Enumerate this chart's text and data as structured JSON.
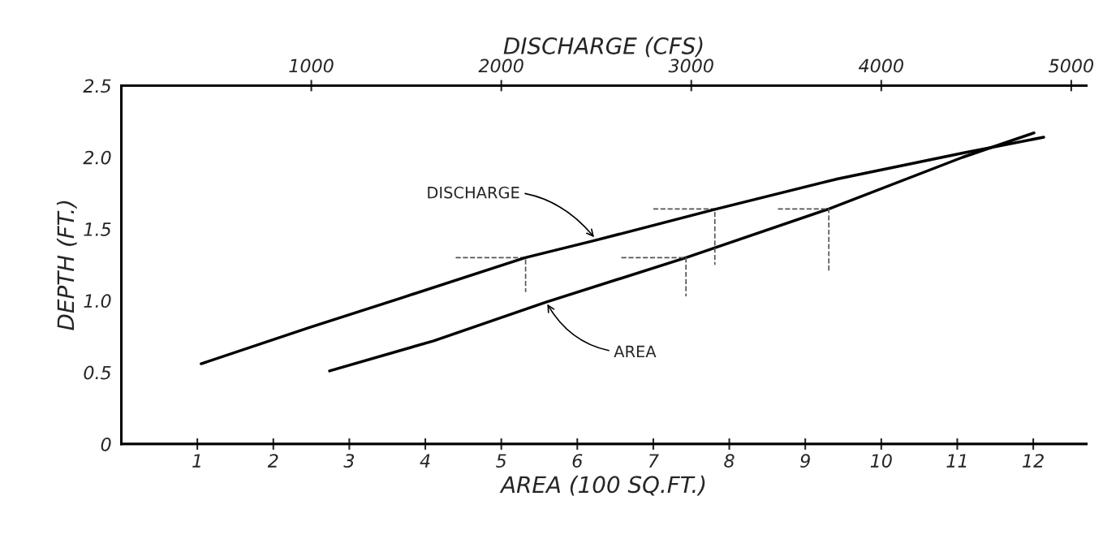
{
  "chart_data": {
    "type": "line",
    "xlabel": "AREA (100 SQ.FT.)",
    "ylabel": "DEPTH (FT.)",
    "x2label": "DISCHARGE (CFS)",
    "xlim": [
      0,
      12.7
    ],
    "xticks": [
      1,
      2,
      3,
      4,
      5,
      6,
      7,
      8,
      9,
      10,
      11,
      12
    ],
    "x2lim": [
      0,
      5080
    ],
    "x2ticks": [
      1000,
      2000,
      3000,
      4000,
      5000
    ],
    "ylim": [
      0,
      2.5
    ],
    "yticks": [
      0,
      {
        "value": 0.5,
        "label": "0.5"
      },
      {
        "value": 1,
        "label": "1.0"
      },
      {
        "value": 1.5,
        "label": "1.5"
      },
      {
        "value": 2,
        "label": "2.0"
      },
      {
        "value": 2.5,
        "label": "2.5"
      }
    ],
    "grid": false,
    "legend": false,
    "series": [
      {
        "color": "#000000",
        "axis": "x2",
        "x": [
          420,
          984,
          1476,
          2126,
          2493,
          3133,
          3772,
          4429,
          4855
        ],
        "values": [
          0.56,
          0.81,
          1.02,
          1.3,
          1.42,
          1.64,
          1.85,
          2.03,
          2.14
        ]
      },
      {
        "color": "#000000",
        "x": [
          2.74,
          4.11,
          5.59,
          7.43,
          9.31,
          11.07,
          12.01
        ],
        "values": [
          0.51,
          0.72,
          0.99,
          1.3,
          1.64,
          2.0,
          2.17
        ]
      },
      {
        "color": "#555555",
        "line_style": "dashed",
        "x": [
          4.4,
          5.32,
          5.32,
          null,
          6.58,
          7.43,
          7.43,
          null,
          7.0,
          7.81,
          7.81,
          null,
          8.64,
          9.31,
          9.31
        ],
        "values": [
          1.3,
          1.3,
          1.06,
          null,
          1.3,
          1.3,
          1.03,
          null,
          1.64,
          1.64,
          1.25,
          null,
          1.64,
          1.64,
          1.2
        ]
      }
    ],
    "annotations": [
      {
        "text": "DISCHARGE",
        "x": 6.24,
        "y": 1.43
      },
      {
        "text": "AREA",
        "x": 5.59,
        "y": 0.99
      }
    ]
  }
}
